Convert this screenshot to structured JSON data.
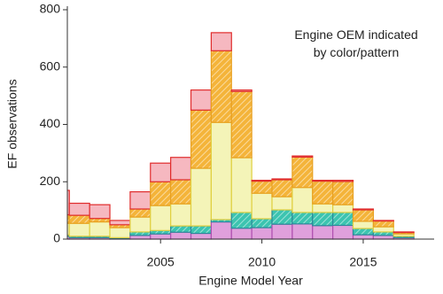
{
  "chart_data": {
    "type": "stacked-histogram",
    "annotation": "Engine OEM indicated\nby color/pattern",
    "xlabel": "Engine Model Year",
    "ylabel": "EF observations",
    "x": [
      2000,
      2001,
      2002,
      2003,
      2004,
      2005,
      2006,
      2007,
      2008,
      2009,
      2010,
      2011,
      2012,
      2013,
      2014,
      2015,
      2016,
      2017
    ],
    "series": [
      {
        "color": "#e0a0dc",
        "stroke": "#b050b0",
        "hatch": false,
        "values": [
          10,
          5,
          5,
          2,
          13,
          18,
          24,
          20,
          60,
          38,
          40,
          52,
          53,
          47,
          48,
          15,
          13,
          5
        ]
      },
      {
        "color": "#3cc4b0",
        "stroke": "#2a8a9a",
        "hatch": true,
        "values": [
          5,
          5,
          5,
          3,
          12,
          12,
          22,
          26,
          8,
          55,
          31,
          50,
          40,
          46,
          45,
          22,
          12,
          5
        ]
      },
      {
        "color": "#f4f4b8",
        "stroke": "#e0d040",
        "hatch": false,
        "values": [
          40,
          45,
          50,
          35,
          52,
          87,
          77,
          201,
          339,
          191,
          89,
          46,
          87,
          30,
          27,
          25,
          18,
          8
        ]
      },
      {
        "color": "#f4b43a",
        "stroke": "#e8a020",
        "hatch": true,
        "values": [
          30,
          28,
          12,
          10,
          28,
          83,
          84,
          203,
          250,
          231,
          42,
          59,
          106,
          79,
          81,
          40,
          20,
          5
        ]
      },
      {
        "color": "#f6b8c0",
        "stroke": "#e02c2c",
        "hatch": false,
        "values": [
          85,
          42,
          48,
          15,
          60,
          65,
          78,
          70,
          63,
          5,
          3,
          3,
          4,
          3,
          4,
          3,
          2,
          2
        ]
      }
    ],
    "xlim": [
      2000.4,
      2018.5
    ],
    "xticks": [
      2005,
      2010,
      2015
    ],
    "ylim": [
      0,
      800
    ],
    "yticks": [
      0,
      200,
      400,
      600,
      800
    ]
  }
}
